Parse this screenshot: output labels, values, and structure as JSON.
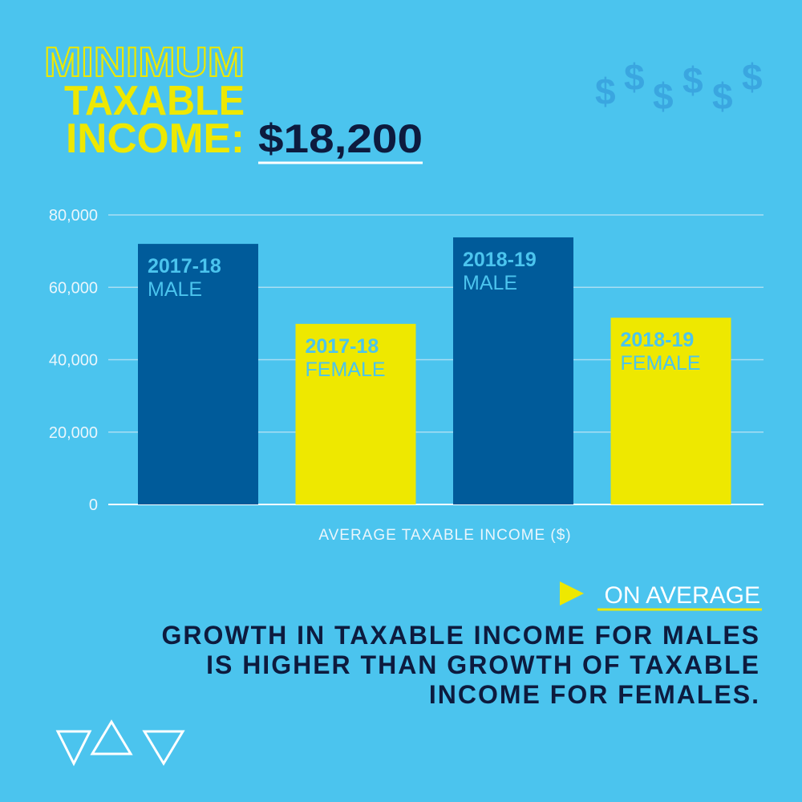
{
  "header": {
    "title_lines": [
      "MINIMUM",
      "TAXABLE",
      "INCOME:"
    ],
    "amount": "$18,200"
  },
  "chart_data": {
    "type": "bar",
    "categories": [
      "2017-18",
      "2018-19"
    ],
    "series": [
      {
        "name": "MALE",
        "color": "#005b9a",
        "values": [
          72000,
          73800
        ]
      },
      {
        "name": "FEMALE",
        "color": "#eee800",
        "values": [
          49900,
          51600
        ]
      }
    ],
    "x_label": "AVERAGE TAXABLE INCOME ($)",
    "ylim": [
      0,
      80000
    ],
    "yticks": [
      0,
      {
        "value": 20000,
        "label": "20,000"
      },
      {
        "value": 40000,
        "label": "40,000"
      },
      {
        "value": 60000,
        "label": "60,000"
      },
      {
        "value": 80000,
        "label": "80,000"
      }
    ],
    "grid": true
  },
  "callout": {
    "label": "ON AVERAGE",
    "text_lines": [
      "GROWTH IN TAXABLE INCOME FOR MALES",
      "IS HIGHER THAN GROWTH OF TAXABLE",
      "INCOME FOR FEMALES."
    ]
  }
}
